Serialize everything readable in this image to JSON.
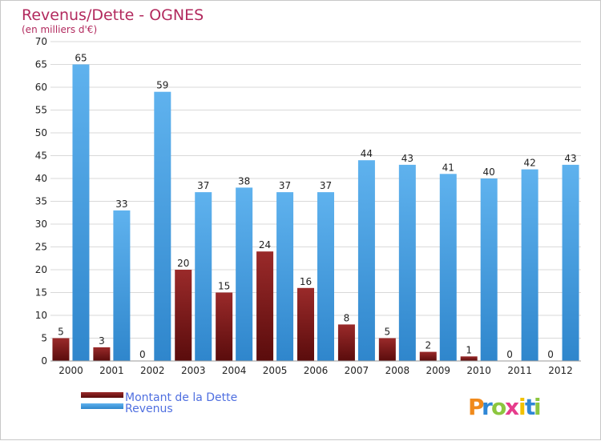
{
  "chart_data": {
    "type": "bar",
    "title": "Revenus/Dette - OGNES",
    "subtitle": "(en milliers d'€)",
    "categories": [
      "2000",
      "2001",
      "2002",
      "2003",
      "2004",
      "2005",
      "2006",
      "2007",
      "2008",
      "2009",
      "2010",
      "2011",
      "2012"
    ],
    "series": [
      {
        "name": "Montant de la Dette",
        "values": [
          5,
          3,
          0,
          20,
          15,
          24,
          16,
          8,
          5,
          2,
          1,
          0,
          0
        ],
        "color": "#8b1a1a"
      },
      {
        "name": "Revenus",
        "values": [
          65,
          33,
          59,
          37,
          38,
          37,
          37,
          44,
          43,
          41,
          40,
          42,
          43
        ],
        "color": "#4aa3e6"
      }
    ],
    "ylim": [
      0,
      70
    ],
    "yticks": [
      0,
      5,
      10,
      15,
      20,
      25,
      30,
      35,
      40,
      45,
      50,
      55,
      60,
      65,
      70
    ],
    "grid": true,
    "legend_position": "bottom-left"
  },
  "logo": {
    "letters": [
      "P",
      "r",
      "o",
      "x",
      "i",
      "t",
      "i"
    ],
    "colors": [
      "#f08a1c",
      "#2f87d6",
      "#8cc63f",
      "#e63c8c",
      "#f2c100",
      "#2f87d6",
      "#8cc63f"
    ]
  }
}
